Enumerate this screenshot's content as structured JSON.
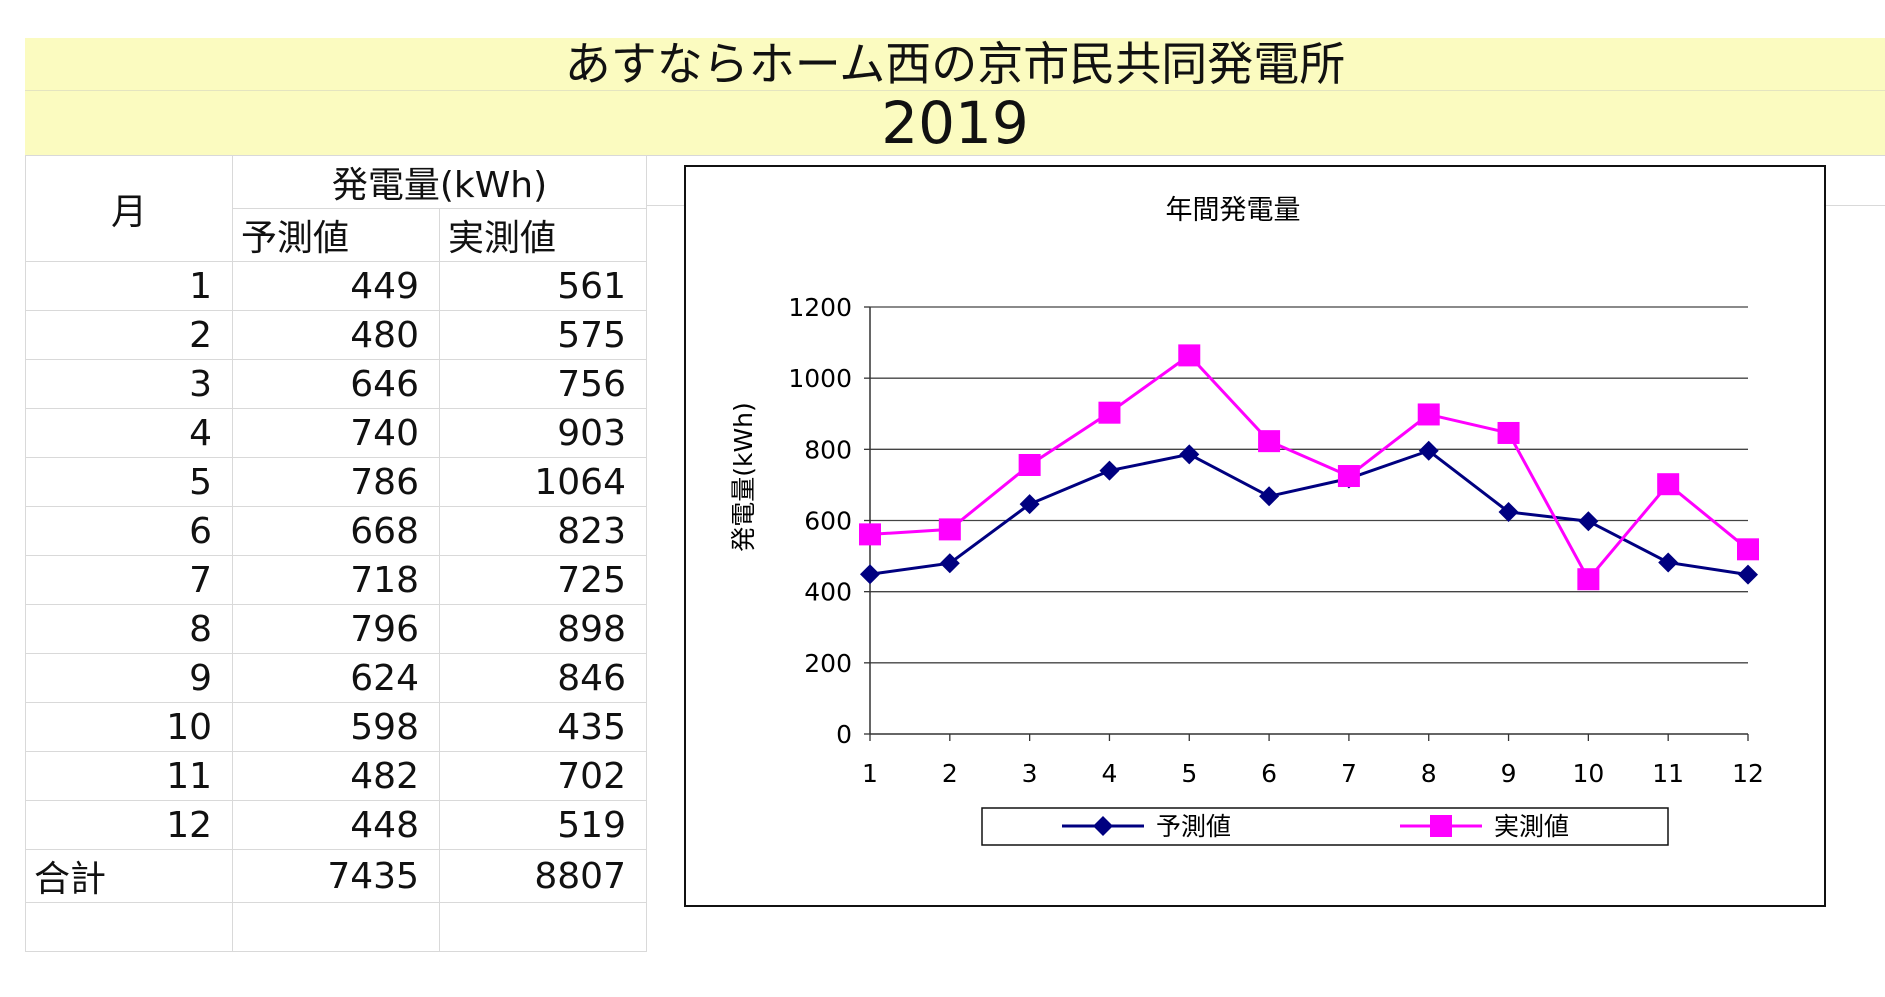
{
  "banner": {
    "title": "あすならホーム西の京市民共同発電所",
    "year": "2019"
  },
  "table": {
    "month_header": "月",
    "group_header": "発電量(kWh)",
    "pred_header": "予測値",
    "act_header": "実測値",
    "rows": [
      {
        "month": "1",
        "pred": "449",
        "act": "561"
      },
      {
        "month": "2",
        "pred": "480",
        "act": "575"
      },
      {
        "month": "3",
        "pred": "646",
        "act": "756"
      },
      {
        "month": "4",
        "pred": "740",
        "act": "903"
      },
      {
        "month": "5",
        "pred": "786",
        "act": "1064"
      },
      {
        "month": "6",
        "pred": "668",
        "act": "823"
      },
      {
        "month": "7",
        "pred": "718",
        "act": "725"
      },
      {
        "month": "8",
        "pred": "796",
        "act": "898"
      },
      {
        "month": "9",
        "pred": "624",
        "act": "846"
      },
      {
        "month": "10",
        "pred": "598",
        "act": "435"
      },
      {
        "month": "11",
        "pred": "482",
        "act": "702"
      },
      {
        "month": "12",
        "pred": "448",
        "act": "519"
      }
    ],
    "total_label": "合計",
    "total_pred": "7435",
    "total_act": "8807"
  },
  "chart_data": {
    "type": "line",
    "title": "年間発電量",
    "ylabel": "発電量(kWh)",
    "xlabel": "",
    "categories": [
      "1",
      "2",
      "3",
      "4",
      "5",
      "6",
      "7",
      "8",
      "9",
      "10",
      "11",
      "12"
    ],
    "ylim": [
      0,
      1200
    ],
    "yticks": [
      0,
      200,
      400,
      600,
      800,
      1000,
      1200
    ],
    "grid": true,
    "legend_position": "bottom",
    "series": [
      {
        "name": "予測値",
        "color": "#000080",
        "marker": "diamond",
        "values": [
          449,
          480,
          646,
          740,
          786,
          668,
          718,
          796,
          624,
          598,
          482,
          448
        ]
      },
      {
        "name": "実測値",
        "color": "#ff00ff",
        "marker": "square",
        "values": [
          561,
          575,
          756,
          903,
          1064,
          823,
          725,
          898,
          846,
          435,
          702,
          519
        ]
      }
    ]
  }
}
